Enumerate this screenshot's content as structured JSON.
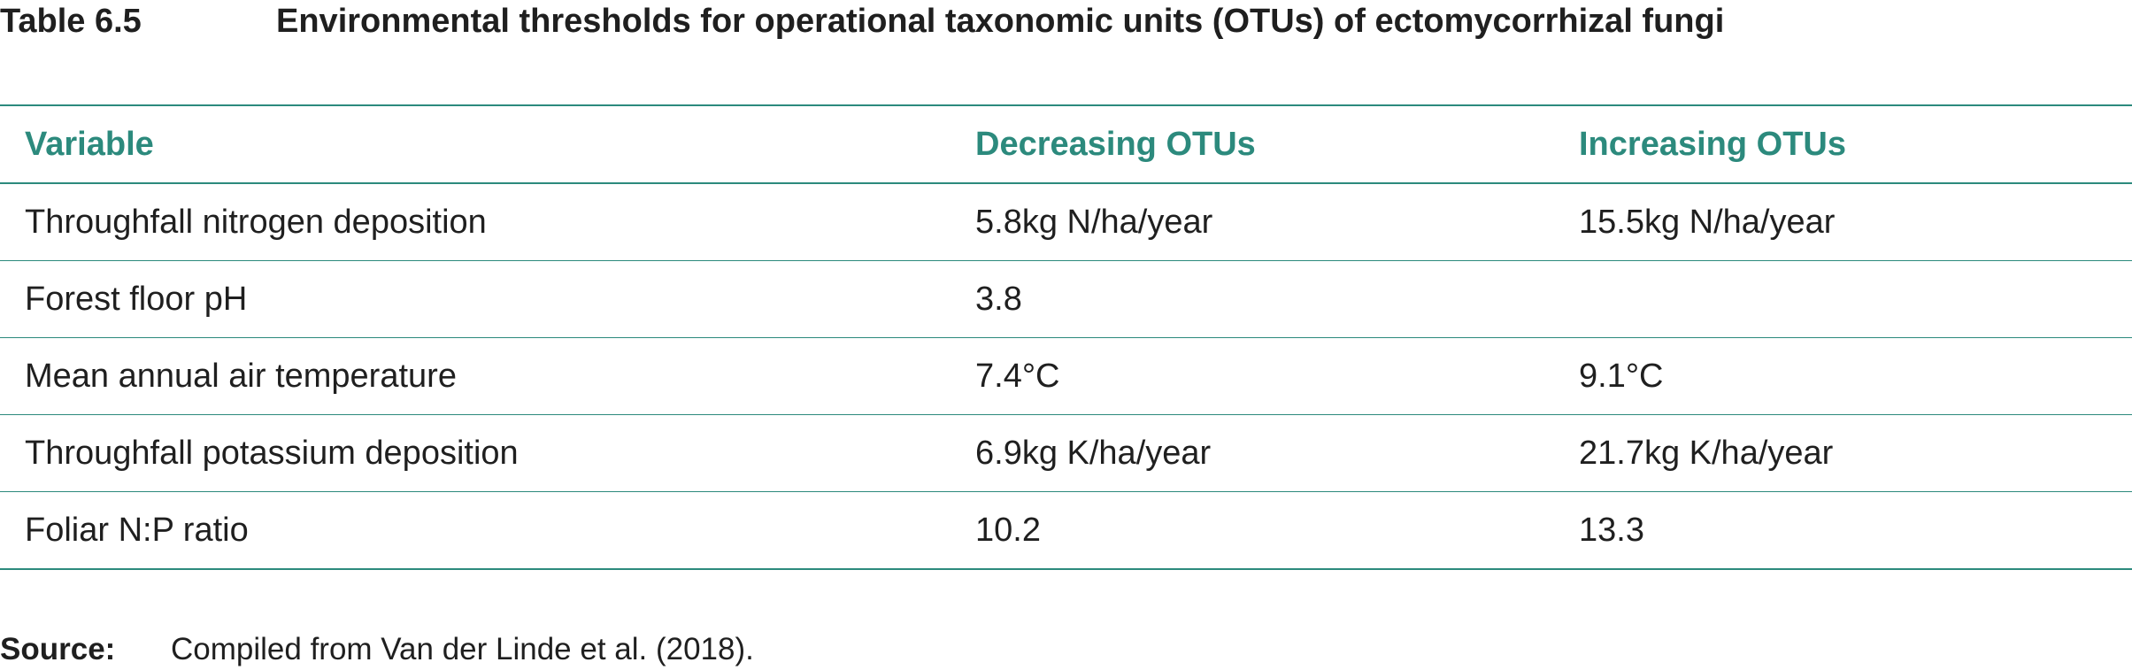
{
  "caption": {
    "number": "Table 6.5",
    "title": "Environmental thresholds for operational taxonomic units (OTUs) of ectomycorrhizal fungi"
  },
  "table": {
    "headers": [
      "Variable",
      "Decreasing OTUs",
      "Increasing OTUs"
    ],
    "rows": [
      [
        "Throughfall nitrogen deposition",
        "5.8kg N/ha/year",
        "15.5kg N/ha/year"
      ],
      [
        "Forest floor pH",
        "3.8",
        ""
      ],
      [
        "Mean annual air temperature",
        "7.4°C",
        "9.1°C"
      ],
      [
        "Throughfall potassium deposition",
        "6.9kg K/ha/year",
        "21.7kg K/ha/year"
      ],
      [
        "Foliar N:P ratio",
        "10.2",
        "13.3"
      ]
    ]
  },
  "source": {
    "label": "Source:",
    "text": "Compiled from Van der Linde et al. (2018)."
  },
  "colors": {
    "accent": "#2c8a7d",
    "text": "#1f1f1f"
  }
}
